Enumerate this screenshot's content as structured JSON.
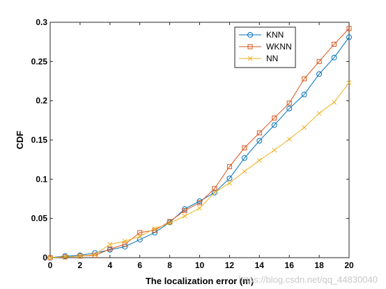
{
  "chart_data": {
    "type": "line",
    "title": "",
    "xlabel": "The localization error (m)",
    "ylabel": "CDF",
    "xlim": [
      0,
      20
    ],
    "ylim": [
      0,
      0.3
    ],
    "x_ticks": [
      "0",
      "2",
      "4",
      "6",
      "8",
      "10",
      "12",
      "14",
      "16",
      "18",
      "20"
    ],
    "y_ticks": [
      "0",
      "0.05",
      "0.1",
      "0.15",
      "0.2",
      "0.25",
      "0.3"
    ],
    "grid": false,
    "legend_position": "top-right",
    "x": [
      0,
      1,
      2,
      3,
      4,
      5,
      6,
      7,
      8,
      9,
      10,
      11,
      12,
      13,
      14,
      15,
      16,
      17,
      18,
      19,
      20
    ],
    "series": [
      {
        "name": "KNN",
        "color": "#0072bd",
        "marker": "circle",
        "values": [
          0.0,
          0.002,
          0.003,
          0.006,
          0.01,
          0.014,
          0.023,
          0.032,
          0.045,
          0.062,
          0.072,
          0.083,
          0.101,
          0.127,
          0.149,
          0.169,
          0.19,
          0.208,
          0.234,
          0.255,
          0.281
        ]
      },
      {
        "name": "WKNN",
        "color": "#d95319",
        "marker": "square",
        "values": [
          0.0,
          0.001,
          0.002,
          0.003,
          0.011,
          0.017,
          0.032,
          0.035,
          0.046,
          0.06,
          0.07,
          0.088,
          0.116,
          0.14,
          0.159,
          0.178,
          0.197,
          0.228,
          0.25,
          0.272,
          0.292
        ]
      },
      {
        "name": "NN",
        "color": "#edb120",
        "marker": "x",
        "values": [
          0.0,
          0.001,
          0.002,
          0.004,
          0.017,
          0.021,
          0.027,
          0.037,
          0.044,
          0.053,
          0.063,
          0.083,
          0.095,
          0.11,
          0.124,
          0.137,
          0.151,
          0.166,
          0.184,
          0.198,
          0.223
        ]
      }
    ]
  },
  "watermark": "https://blog.csdn.net/qq_44830040"
}
